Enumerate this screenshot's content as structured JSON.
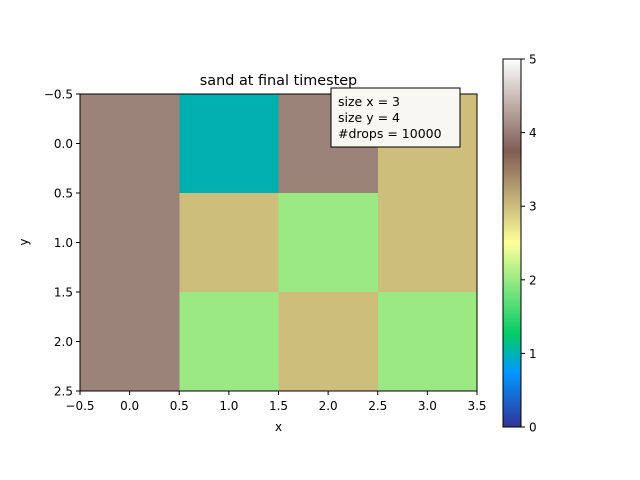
{
  "chart_data": {
    "type": "heatmap",
    "title": "sand at final timestep",
    "xlabel": "x",
    "ylabel": "y",
    "xlim": [
      -0.5,
      3.5
    ],
    "ylim": [
      2.5,
      -0.5
    ],
    "x_ticks": [
      "−0.5",
      "0.0",
      "0.5",
      "1.0",
      "1.5",
      "2.0",
      "2.5",
      "3.0",
      "3.5"
    ],
    "y_ticks": [
      "−0.5",
      "0.0",
      "0.5",
      "1.0",
      "1.5",
      "2.0",
      "2.5"
    ],
    "values": [
      [
        4,
        1,
        4,
        3
      ],
      [
        4,
        3,
        2,
        3
      ],
      [
        4,
        2,
        3,
        2
      ]
    ],
    "colormap": "terrain",
    "cell_colors": {
      "1": "#00b0b0",
      "2": "#9ae983",
      "3": "#cebe7c",
      "4": "#9c8379"
    },
    "colorbar": {
      "range": [
        0,
        5
      ],
      "ticks": [
        "0",
        "1",
        "2",
        "3",
        "4",
        "5"
      ]
    },
    "annotation": {
      "lines": [
        "size x = 3",
        "size y = 4",
        "#drops = 10000"
      ]
    }
  }
}
